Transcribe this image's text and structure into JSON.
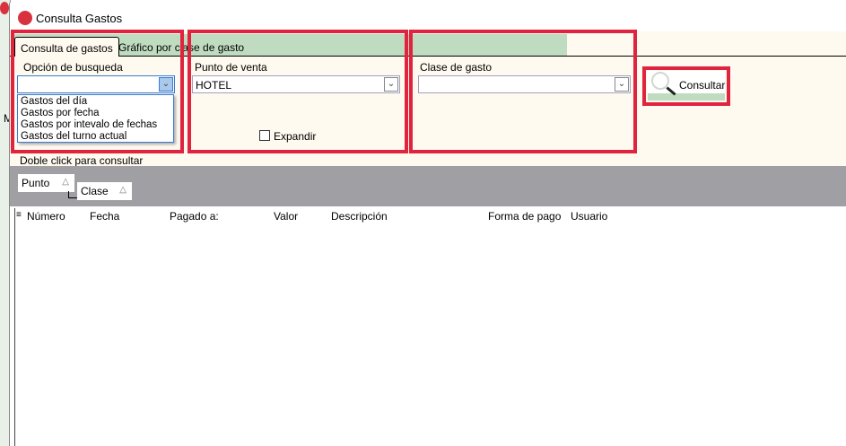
{
  "window": {
    "title": "Consulta Gastos"
  },
  "tabs": [
    {
      "label": "Consulta de gastos",
      "active": true
    },
    {
      "label": "Gráfico por clase de gasto",
      "active": false
    }
  ],
  "search_option": {
    "label": "Opción de busqueda",
    "value": "",
    "options": [
      "Gastos del día",
      "Gastos por fecha",
      "Gastos por intevalo de fechas",
      "Gastos del turno actual"
    ]
  },
  "point_of_sale": {
    "label": "Punto de venta",
    "value": "HOTEL",
    "expand_label": "Expandir",
    "expand_checked": false
  },
  "expense_class": {
    "label": "Clase de gasto",
    "value": ""
  },
  "consult_button": {
    "label": "Consultar",
    "icon": "magnifier-icon"
  },
  "hint": "Doble click para consultar",
  "group_tags": [
    "Punto",
    "Clase"
  ],
  "columns": [
    "Número",
    "Fecha",
    "Pagado a:",
    "Valor",
    "Descripción",
    "Forma de pago",
    "Usuario"
  ],
  "colors": {
    "highlight": "#e0233f",
    "tab_strip": "#c0dcc0",
    "panel": "#fffaef",
    "group_area": "#a09fa4"
  }
}
